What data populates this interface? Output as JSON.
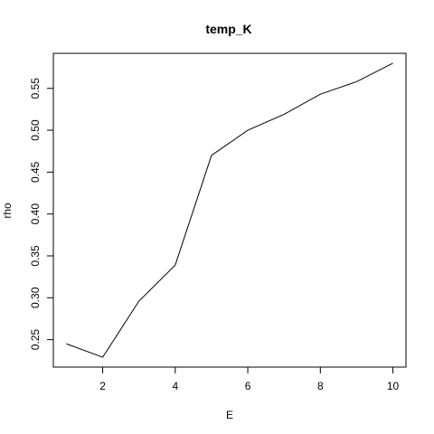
{
  "chart_data": {
    "type": "line",
    "title": "temp_K",
    "xlabel": "E",
    "ylabel": "rho",
    "x": [
      1,
      2,
      3,
      4,
      5,
      6,
      7,
      8,
      9,
      10
    ],
    "series": [
      {
        "values": [
          0.245,
          0.229,
          0.296,
          0.339,
          0.47,
          0.5,
          0.519,
          0.543,
          0.558,
          0.58
        ]
      }
    ],
    "xlim": [
      0.64,
      10.36
    ],
    "ylim": [
      0.2172,
      0.5918
    ],
    "xticks": [
      2,
      4,
      6,
      8,
      10
    ],
    "yticks": [
      0.25,
      0.3,
      0.35,
      0.4,
      0.45,
      0.5,
      0.55
    ],
    "ytick_labels": [
      "0.25",
      "0.30",
      "0.35",
      "0.40",
      "0.45",
      "0.50",
      "0.55"
    ],
    "grid": false,
    "legend": "none",
    "colors": {
      "line": "#000000",
      "axis": "#000000",
      "background": "#ffffff"
    }
  }
}
